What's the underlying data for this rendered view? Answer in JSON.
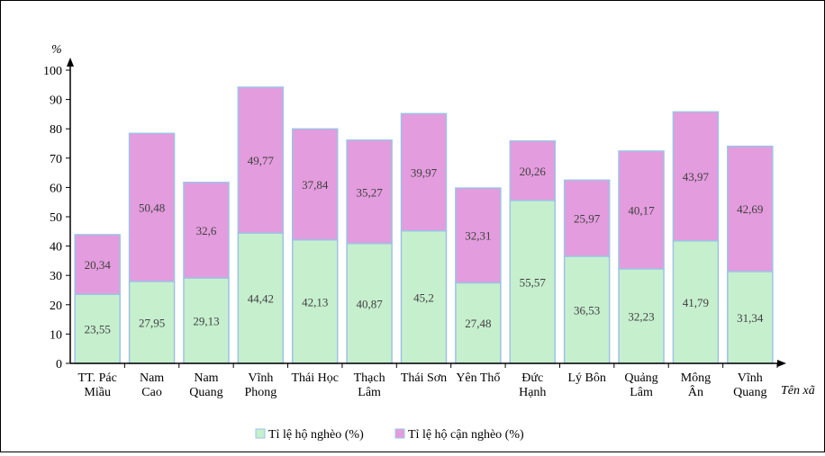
{
  "chart_data": {
    "type": "bar",
    "stacked": true,
    "ylabel": "%",
    "xlabel": "Tên xã",
    "ylim": [
      0,
      100
    ],
    "yticks": [
      0,
      10,
      20,
      30,
      40,
      50,
      60,
      70,
      80,
      90,
      100
    ],
    "legend_position": "bottom",
    "grid": false,
    "categories": [
      [
        "TT. Pác",
        "Miầu"
      ],
      [
        "Nam",
        "Cao"
      ],
      [
        "Nam",
        "Quang"
      ],
      [
        "Vĩnh",
        "Phong"
      ],
      [
        "Thái Học"
      ],
      [
        "Thạch",
        "Lâm"
      ],
      [
        "Thái Sơn"
      ],
      [
        "Yên Thổ"
      ],
      [
        "Đức",
        "Hạnh"
      ],
      [
        "Lý Bôn"
      ],
      [
        "Quảng",
        "Lâm"
      ],
      [
        "Mông",
        "Ân"
      ],
      [
        "Vĩnh",
        "Quang"
      ]
    ],
    "series": [
      {
        "name": "Tỉ lệ hộ nghèo (%)",
        "color": "#c6efce",
        "values": [
          23.55,
          27.95,
          29.13,
          44.42,
          42.13,
          40.87,
          45.2,
          27.48,
          55.57,
          36.53,
          32.23,
          41.79,
          31.34
        ],
        "labels": [
          "23,55",
          "27,95",
          "29,13",
          "44,42",
          "42,13",
          "40,87",
          "45,2",
          "27,48",
          "55,57",
          "36,53",
          "32,23",
          "41,79",
          "31,34"
        ]
      },
      {
        "name": "Tỉ lệ hộ cận nghèo (%)",
        "color": "#e39cdd",
        "values": [
          20.34,
          50.48,
          32.6,
          49.77,
          37.84,
          35.27,
          39.97,
          32.31,
          20.26,
          25.97,
          40.17,
          43.97,
          42.69
        ],
        "labels": [
          "20,34",
          "50,48",
          "32,6",
          "49,77",
          "37,84",
          "35,27",
          "39,97",
          "32,31",
          "20,26",
          "25,97",
          "40,17",
          "43,97",
          "42,69"
        ]
      }
    ],
    "bar_edge_color": "#9dc3e6"
  }
}
